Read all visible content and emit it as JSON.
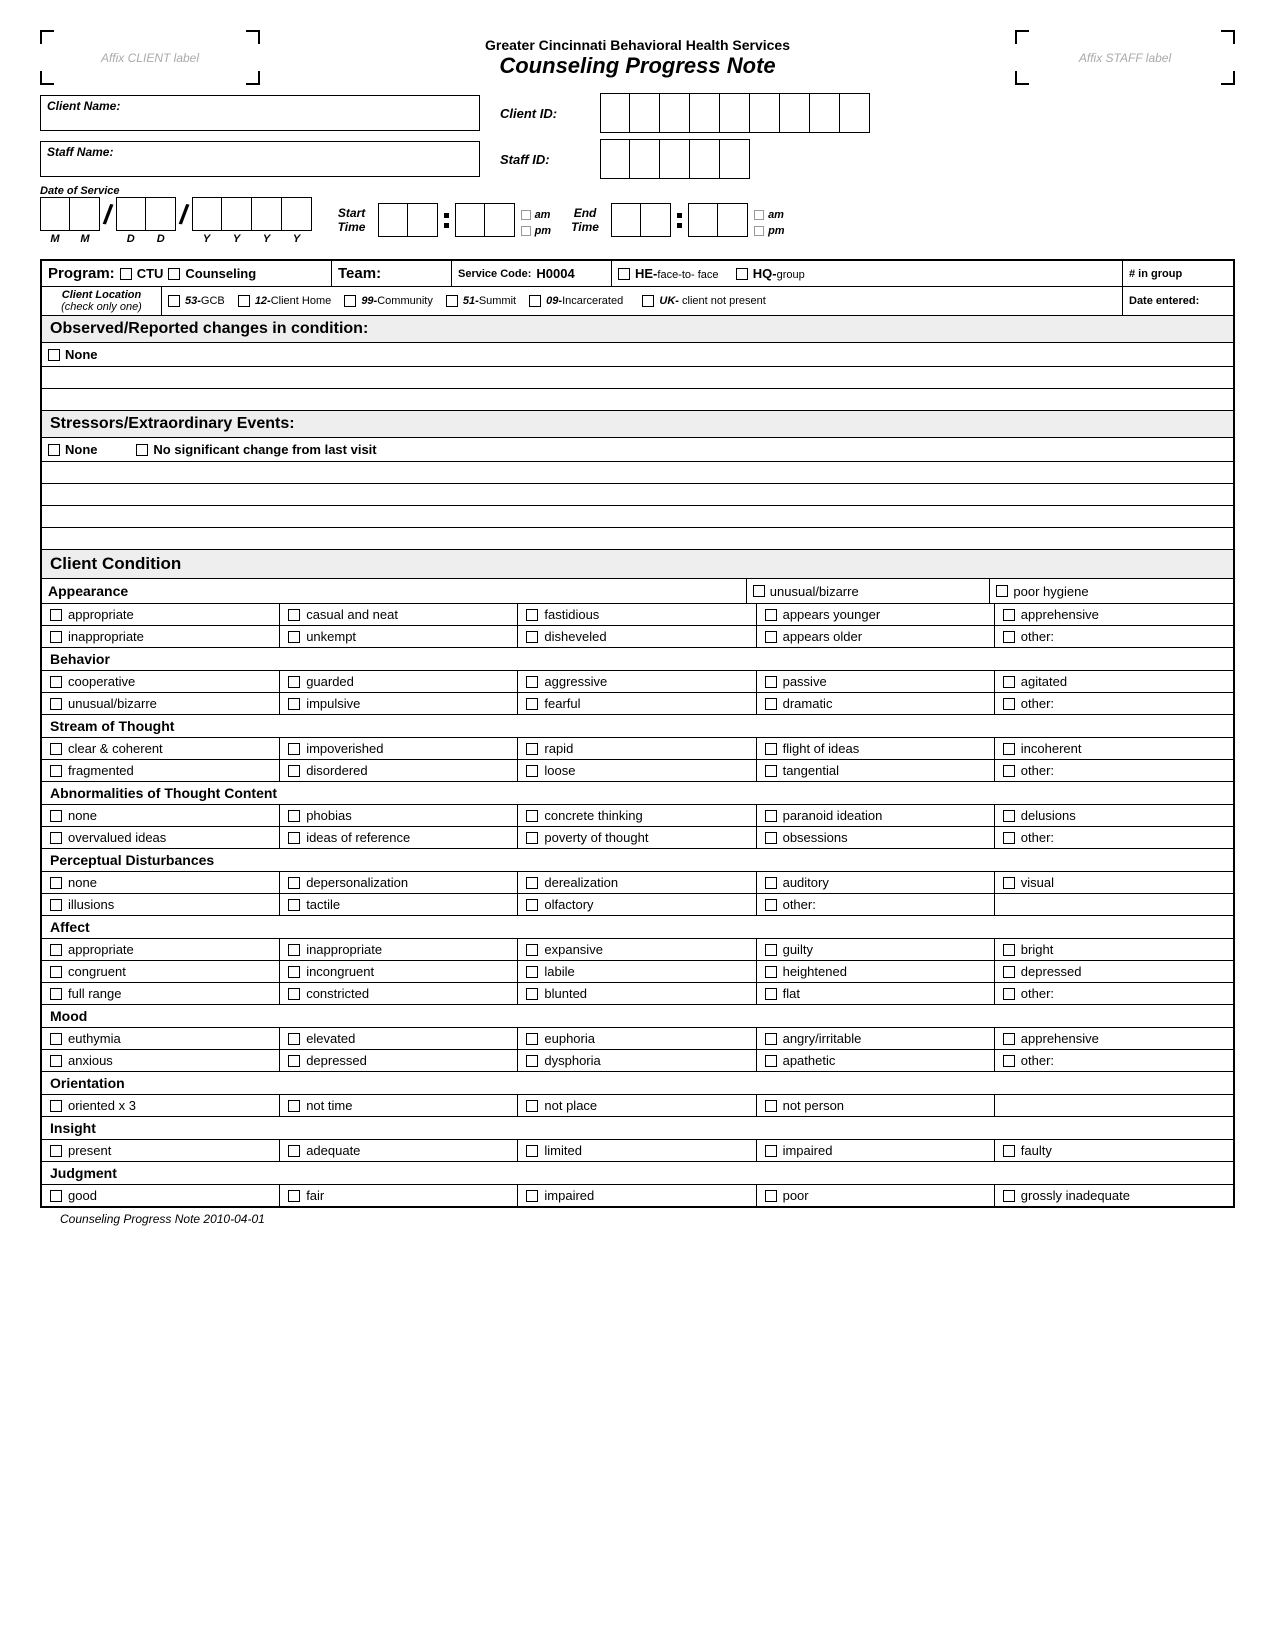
{
  "header": {
    "affix_client": "Affix CLIENT label",
    "affix_staff": "Affix STAFF label",
    "org": "Greater Cincinnati Behavioral Health Services",
    "title": "Counseling Progress Note"
  },
  "fields": {
    "client_name": "Client Name:",
    "staff_name": "Staff Name:",
    "client_id": "Client ID:",
    "staff_id": "Staff ID:",
    "date_of_service": "Date of Service",
    "start_time": "Start Time",
    "end_time": "End Time",
    "am": "am",
    "pm": "pm",
    "M": "M",
    "D": "D",
    "Y": "Y"
  },
  "program_row": {
    "program": "Program:",
    "ctu": "CTU",
    "counseling": "Counseling",
    "team": "Team:",
    "service_code_label": "Service Code:",
    "service_code": "H0004",
    "he": "HE-",
    "he_suffix": "face-to- face",
    "hq": "HQ-",
    "hq_suffix": "group",
    "num_in_group": "# in group"
  },
  "location_row": {
    "label1": "Client Location",
    "label2": "(check only one)",
    "o53": "53-",
    "o53s": "GCB",
    "o12": "12-",
    "o12s": "Client Home",
    "o99": "99-",
    "o99s": "Community",
    "o51": "51-",
    "o51s": "Summit",
    "o09": "09-",
    "o09s": "Incarcerated",
    "ouk": "UK-",
    "ouks": " client not present",
    "date_entered": "Date entered:"
  },
  "sections": {
    "observed": "Observed/Reported changes in condition:",
    "none": "None",
    "stressors": "Stressors/Extraordinary Events:",
    "no_change": "No significant change from last visit",
    "client_condition": "Client Condition"
  },
  "condition": {
    "appearance": {
      "title": "Appearance",
      "items": [
        "appropriate",
        "casual and neat",
        "fastidious",
        "appears younger",
        "apprehensive",
        "inappropriate",
        "unkempt",
        "disheveled",
        "appears older",
        "other:"
      ],
      "extra": [
        "unusual/bizarre",
        "poor hygiene"
      ]
    },
    "behavior": {
      "title": "Behavior",
      "items": [
        "cooperative",
        "guarded",
        "aggressive",
        "passive",
        "agitated",
        "unusual/bizarre",
        "impulsive",
        "fearful",
        "dramatic",
        "other:"
      ]
    },
    "stream": {
      "title": "Stream of Thought",
      "items": [
        "clear & coherent",
        "impoverished",
        "rapid",
        "flight of ideas",
        "incoherent",
        "fragmented",
        "disordered",
        "loose",
        "tangential",
        "other:"
      ]
    },
    "abnormal": {
      "title": "Abnormalities of Thought Content",
      "items": [
        "none",
        "phobias",
        "concrete thinking",
        "paranoid ideation",
        "delusions",
        "overvalued ideas",
        "ideas of reference",
        "poverty of thought",
        "obsessions",
        "other:"
      ]
    },
    "perceptual": {
      "title": "Perceptual Disturbances",
      "items": [
        "none",
        "depersonalization",
        "derealization",
        "auditory",
        "visual",
        "illusions",
        " tactile",
        "olfactory",
        "other:",
        ""
      ]
    },
    "affect": {
      "title": "Affect",
      "items": [
        "appropriate",
        "inappropriate",
        "expansive",
        "guilty",
        "bright",
        "congruent",
        "incongruent",
        "labile",
        "heightened",
        "depressed",
        "full range",
        "constricted",
        "blunted",
        "flat",
        "other:"
      ]
    },
    "mood": {
      "title": "Mood",
      "items": [
        "euthymia",
        "elevated",
        "euphoria",
        "angry/irritable",
        "apprehensive",
        "anxious",
        "depressed",
        "dysphoria",
        "apathetic",
        "other:"
      ]
    },
    "orientation": {
      "title": "Orientation",
      "items": [
        "oriented x 3",
        "not time",
        "not place",
        "not person",
        ""
      ]
    },
    "insight": {
      "title": "Insight",
      "items": [
        "present",
        "adequate",
        "limited",
        "impaired",
        "faulty"
      ]
    },
    "judgment": {
      "title": "Judgment",
      "items": [
        "good",
        "fair",
        "impaired",
        "poor",
        "grossly inadequate"
      ]
    }
  },
  "footer": "Counseling Progress Note 2010-04-01"
}
